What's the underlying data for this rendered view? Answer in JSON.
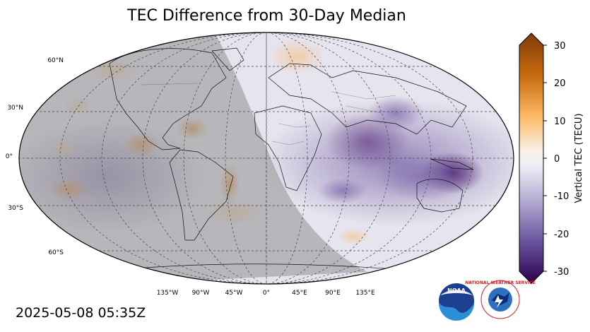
{
  "title": "TEC Difference from 30-Day Median",
  "timestamp": "2025-05-08 05:35Z",
  "lat_labels": [
    "60°N",
    "30°N",
    "0°",
    "30°S",
    "60°S"
  ],
  "lon_labels": [
    "135°W",
    "90°W",
    "45°W",
    "0°",
    "45°E",
    "90°E",
    "135°E"
  ],
  "colorbar": {
    "label": "Vertical TEC (TECU)",
    "ticks": [
      "30",
      "20",
      "10",
      "0",
      "-10",
      "-20",
      "-30"
    ],
    "range": [
      -30,
      30
    ]
  },
  "logos": {
    "noaa": "NOAA",
    "nws": "NATIONAL WEATHER SERVICE"
  },
  "colors": {
    "positive": "#8b4a0b",
    "neutral": "#f3f1ee",
    "negative": "#3c0a55",
    "night_shade": "#9a9a9a"
  }
}
